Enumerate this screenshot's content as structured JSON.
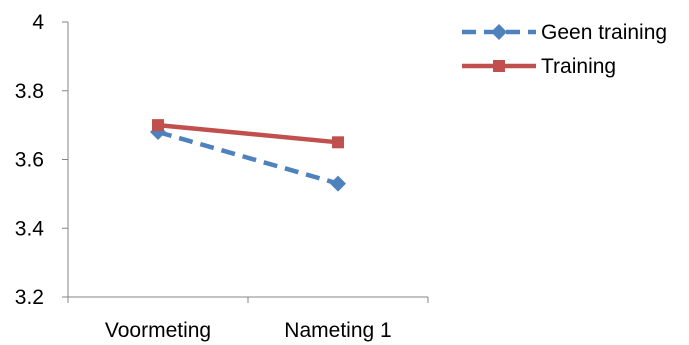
{
  "chart_data": {
    "type": "line",
    "title": "",
    "xlabel": "",
    "ylabel": "",
    "categories": [
      "Voormeting",
      "Nameting 1"
    ],
    "ylim": [
      3.2,
      4
    ],
    "yticks": [
      "3.2",
      "3.4",
      "3.6",
      "3.8",
      "4"
    ],
    "grid": false,
    "legend_position": "top-right",
    "series": [
      {
        "name": "Geen training",
        "values": [
          3.68,
          3.53
        ],
        "color": "#4F81BD",
        "line_style": "dashed",
        "marker": "diamond"
      },
      {
        "name": "Training",
        "values": [
          3.7,
          3.65
        ],
        "color": "#C0504D",
        "line_style": "solid",
        "marker": "square"
      }
    ]
  }
}
